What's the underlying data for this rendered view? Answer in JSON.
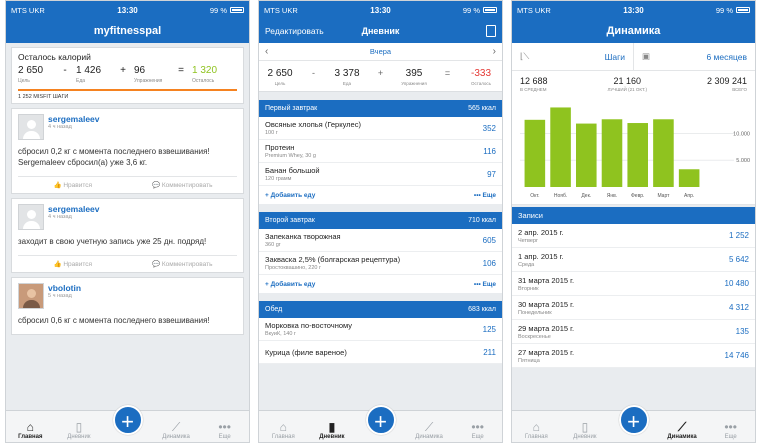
{
  "status": {
    "carrier": "MTS UKR",
    "time": "13:30",
    "battery": "99 %"
  },
  "tabs": [
    {
      "label": "Главная",
      "icon": "home-icon"
    },
    {
      "label": "Дневник",
      "icon": "diary-icon"
    },
    {
      "label": "+",
      "icon": "plus-icon"
    },
    {
      "label": "Динамика",
      "icon": "chart-icon"
    },
    {
      "label": "Еще",
      "icon": "more-icon"
    }
  ],
  "home": {
    "title": "myfitnesspal",
    "calories_title": "Осталось калорий",
    "goal": "2 650",
    "goal_label": "Цель",
    "food": "1 426",
    "food_label": "Еда",
    "exercise": "96",
    "exercise_label": "Упражнения",
    "remaining": "1 320",
    "remaining_label": "Осталось",
    "op_minus": "-",
    "op_plus": "+",
    "op_eq": "=",
    "steps": "1 252 MISFIT ШАГИ",
    "like_label": "Нравится",
    "comment_label": "Комментировать",
    "posts": [
      {
        "user": "sergemaleev",
        "ago": "4 ч назад",
        "text": "сбросил 0,2 кг с момента последнего взвешивания! Sergemaleev сбросил(а) уже 3,6 кг."
      },
      {
        "user": "sergemaleev",
        "ago": "4 ч назад",
        "text": "заходит в свою учетную запись уже 25 дн. подряд!"
      },
      {
        "user": "vbolotin",
        "ago": "5 ч назад",
        "text": "сбросил 0,6 кг с момента последнего взвешивания!"
      }
    ]
  },
  "diary": {
    "edit": "Редактировать",
    "title": "Дневник",
    "date": "Вчера",
    "goal": "2 650",
    "goal_label": "Цель",
    "food": "3 378",
    "food_label": "Еда",
    "exercise": "395",
    "exercise_label": "Упражнения",
    "remaining": "-333",
    "remaining_label": "Осталось",
    "op_minus": "-",
    "op_plus": "+",
    "op_eq": "=",
    "add_food": "+ Добавить еду",
    "more": "••• Еще",
    "sections": [
      {
        "name": "Первый завтрак",
        "kcal": "565 ккал",
        "items": [
          {
            "name": "Овсяные хлопья (Геркулес)",
            "desc": "100 г",
            "kcal": "352"
          },
          {
            "name": "Протеин",
            "desc": "Premium Whey, 30 g",
            "kcal": "116"
          },
          {
            "name": "Банан большой",
            "desc": "120 грамм",
            "kcal": "97"
          }
        ]
      },
      {
        "name": "Второй завтрак",
        "kcal": "710 ккал",
        "items": [
          {
            "name": "Запеканка творожная",
            "desc": "360 gr",
            "kcal": "605"
          },
          {
            "name": "Закваска 2,5% (болгарская рецептура)",
            "desc": "Простоквашино, 220 г",
            "kcal": "106"
          }
        ]
      },
      {
        "name": "Обед",
        "kcal": "683 ккал",
        "items": [
          {
            "name": "Морковка по-восточному",
            "desc": "ВкуиК, 140 г",
            "kcal": "125"
          },
          {
            "name": "Курица (филе вареное)",
            "desc": "",
            "kcal": "211"
          }
        ]
      }
    ]
  },
  "dynamics": {
    "title": "Динамика",
    "metric": "Шаги",
    "period": "6 месяцев",
    "avg": "12 688",
    "avg_label": "В СРЕДНЕМ",
    "best": "21 160",
    "best_label": "ЛУЧШИЙ (21 ОКТ.)",
    "total": "2 309 241",
    "total_label": "ВСЕГО",
    "entries_title": "Записи",
    "entries": [
      {
        "date": "2 апр. 2015 г.",
        "day": "Четверг",
        "value": "1 252"
      },
      {
        "date": "1 апр. 2015 г.",
        "day": "Среда",
        "value": "5 642"
      },
      {
        "date": "31 марта 2015 г.",
        "day": "Вторник",
        "value": "10 480"
      },
      {
        "date": "30 марта 2015 г.",
        "day": "Понедельник",
        "value": "4 312"
      },
      {
        "date": "29 марта 2015 г.",
        "day": "Воскресенье",
        "value": "135"
      },
      {
        "date": "27 марта 2015 г.",
        "day": "Пятница",
        "value": "14 746"
      }
    ]
  },
  "chart_data": {
    "type": "bar",
    "categories": [
      "Окт.",
      "Нояб.",
      "Дек.",
      "Янв.",
      "Февр.",
      "Март",
      "Апр."
    ],
    "values": [
      12500,
      14800,
      11800,
      12600,
      11900,
      12600,
      3300
    ],
    "ylim": [
      0,
      16000
    ],
    "yticks": [
      5000,
      10000
    ],
    "ytick_labels": [
      "5.000",
      "10.000"
    ],
    "bar_color": "#8fc31f"
  },
  "colors": {
    "primary": "#1b6dc1",
    "accent_green": "#8fc31f",
    "negative": "#e53935",
    "bar_orange": "#f58220"
  }
}
